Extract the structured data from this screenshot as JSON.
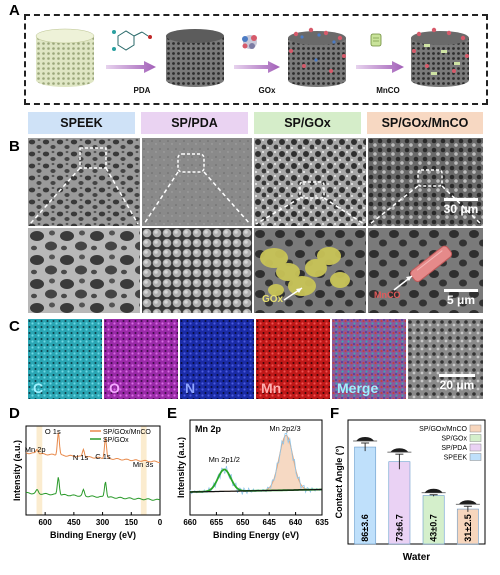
{
  "panels": {
    "A": "A",
    "B": "B",
    "C": "C",
    "D": "D",
    "E": "E",
    "F": "F"
  },
  "schematic": {
    "steps": [
      "PDA",
      "GOx",
      "MnCO"
    ]
  },
  "sem": {
    "headers": [
      {
        "label": "SPEEK",
        "color": "#cfe2f7"
      },
      {
        "label": "SP/PDA",
        "color": "#ead3f2"
      },
      {
        "label": "SP/GOx",
        "color": "#d5edc9"
      },
      {
        "label": "SP/GOx/MnCO",
        "color": "#f7d8c2"
      }
    ],
    "scale_top": "30 μm",
    "scale_bottom": "5 μm",
    "gox_label": "GOx",
    "mnco_label": "MnCO"
  },
  "eds": {
    "maps": [
      {
        "label": "C",
        "color": "#2aa6b4",
        "text": "#9ff1ff"
      },
      {
        "label": "O",
        "color": "#9a2aa8",
        "text": "#f4a9ff"
      },
      {
        "label": "N",
        "color": "#1a2ba6",
        "text": "#8fa4ff"
      },
      {
        "label": "Mn",
        "color": "#c01818",
        "text": "#ffb0b0"
      },
      {
        "label": "Merge",
        "color": "#8c5a9a",
        "text": "#9ff1ff"
      }
    ],
    "scale": "20 μm"
  },
  "chart_data": [
    {
      "type": "line",
      "panel": "D",
      "xlabel": "Binding Energy (eV)",
      "ylabel": "Intensity (a.u.)",
      "xlim": [
        700,
        0
      ],
      "xticks": [
        600,
        450,
        300,
        150,
        0
      ],
      "series": [
        {
          "name": "SP/GOx/MnCO",
          "color": "#e8894a"
        },
        {
          "name": "SP/GOx",
          "color": "#2a9a2a"
        }
      ],
      "annotations": [
        "Mn 2p",
        "O 1s",
        "N 1s",
        "C 1s",
        "Mn 3s"
      ],
      "peaks_eV": {
        "Mn 2p": 642,
        "O 1s": 531,
        "N 1s": 400,
        "C 1s": 285,
        "Mn 3s": 84
      }
    },
    {
      "type": "line",
      "panel": "E",
      "title": "Mn 2p",
      "xlabel": "Binding Energy (eV)",
      "ylabel": "Intensity (a.u.)",
      "xlim": [
        660,
        635
      ],
      "xticks": [
        660,
        655,
        650,
        645,
        640,
        635
      ],
      "annotations": [
        "Mn 2p1/2",
        "Mn 2p2/3"
      ],
      "peaks_eV": {
        "Mn 2p1/2": 653.5,
        "Mn 2p2/3": 641.8
      }
    },
    {
      "type": "bar",
      "panel": "F",
      "xlabel": "Water",
      "ylabel": "Contact Angle (°)",
      "categories": [
        "SPEEK",
        "SP/PDA",
        "SP/GOx",
        "SP/GOx/MnCO"
      ],
      "values": [
        86,
        73,
        43,
        31
      ],
      "errors": [
        3.6,
        6.7,
        0.7,
        2.5
      ],
      "value_labels": [
        "86±3.6",
        "73±6.7",
        "43±0.7",
        "31±2.5"
      ],
      "colors": [
        "#bfe0fb",
        "#ead2f4",
        "#d4efcb",
        "#f7d6bd"
      ],
      "legend": [
        "SP/GOx/MnCO",
        "SP/GOx",
        "SP/PDA",
        "SPEEK"
      ],
      "ylim": [
        0,
        110
      ]
    }
  ]
}
